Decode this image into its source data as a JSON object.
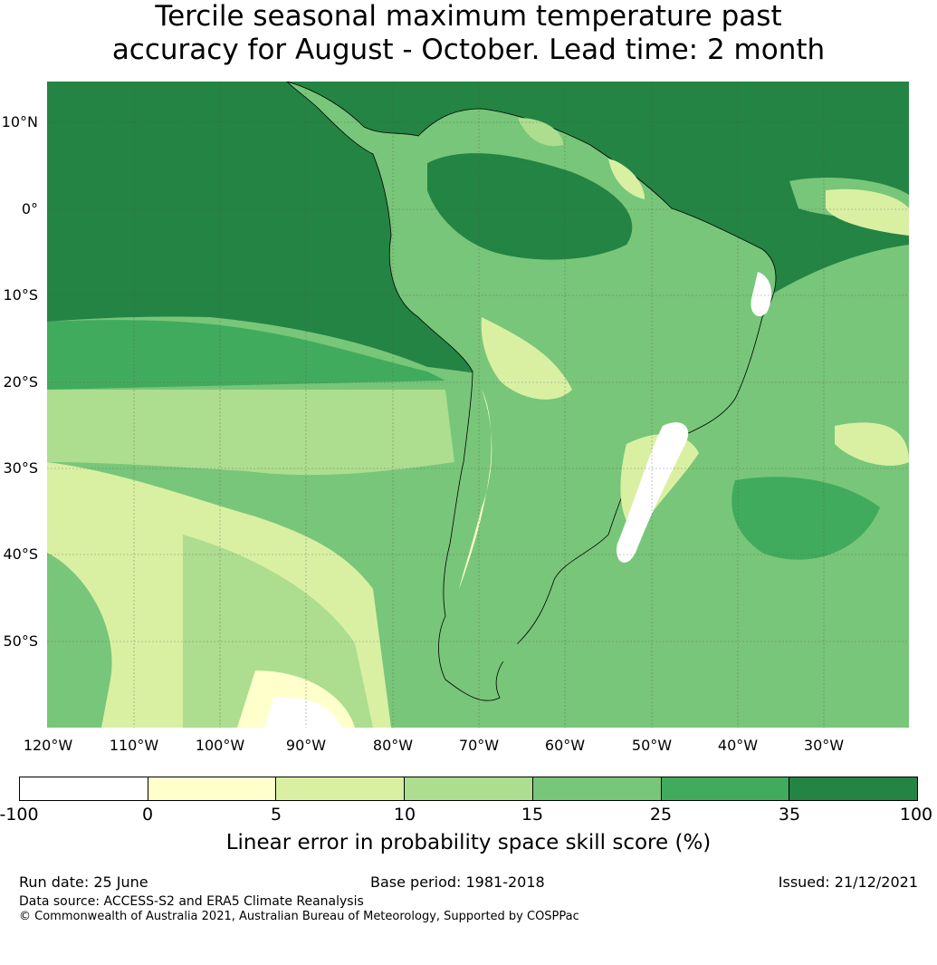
{
  "title": {
    "line1": "Tercile seasonal maximum temperature past",
    "line2": "accuracy for August - October. Lead time: 2 month"
  },
  "map": {
    "lat_labels": [
      "10°N",
      "0°",
      "10°S",
      "20°S",
      "30°S",
      "40°S",
      "50°S"
    ],
    "lon_labels": [
      "120°W",
      "110°W",
      "100°W",
      "90°W",
      "80°W",
      "70°W",
      "60°W",
      "50°W",
      "40°W",
      "30°W"
    ],
    "land_colors": [
      "#238443",
      "#41ab5d",
      "#78c679",
      "#addd8e",
      "#d9f0a3",
      "#ffffcc",
      "#ffffff"
    ]
  },
  "colorbar": {
    "ticks": [
      "-100",
      "0",
      "5",
      "10",
      "15",
      "25",
      "35",
      "100"
    ],
    "colors": [
      "#ffffff",
      "#ffffcc",
      "#d9f0a3",
      "#addd8e",
      "#78c679",
      "#41ab5d",
      "#238443"
    ],
    "label": "Linear error in probability space skill score (%)"
  },
  "footer": {
    "run_date": "Run date: 25 June",
    "base_period": "Base period: 1981-2018",
    "issued": "Issued: 21/12/2021",
    "data_source": "Data source: ACCESS-S2 and ERA5 Climate Reanalysis",
    "copyright": "© Commonwealth of Australia 2021, Australian Bureau of Meteorology, Supported by COSPPac"
  }
}
